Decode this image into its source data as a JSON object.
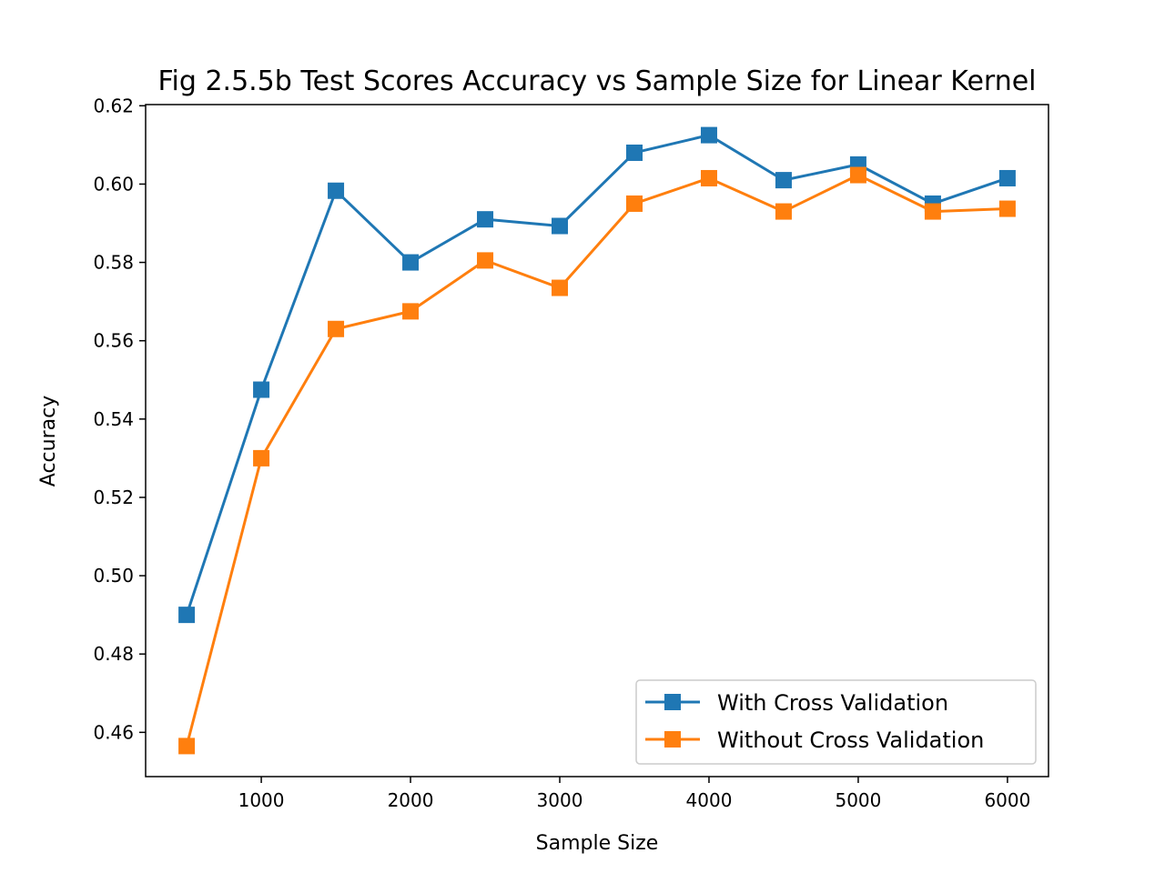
{
  "chart_data": {
    "type": "line",
    "title": "Fig 2.5.5b Test Scores Accuracy vs Sample Size for Linear Kernel",
    "xlabel": "Sample Size",
    "ylabel": "Accuracy",
    "x": [
      500,
      1000,
      1500,
      2000,
      2500,
      3000,
      3500,
      4000,
      4500,
      5000,
      5500,
      6000
    ],
    "xlim": [
      225,
      6275
    ],
    "ylim": [
      0.4487,
      0.6203
    ],
    "xticks": [
      1000,
      2000,
      3000,
      4000,
      5000,
      6000
    ],
    "xtick_labels": [
      "1000",
      "2000",
      "3000",
      "4000",
      "5000",
      "6000"
    ],
    "yticks": [
      0.46,
      0.48,
      0.5,
      0.52,
      0.54,
      0.56,
      0.58,
      0.6,
      0.62
    ],
    "ytick_labels": [
      "0.46",
      "0.48",
      "0.50",
      "0.52",
      "0.54",
      "0.56",
      "0.58",
      "0.60",
      "0.62"
    ],
    "grid": false,
    "legend_position": "bottom-right",
    "series": [
      {
        "name": "With Cross Validation",
        "color": "#1f77b4",
        "marker": "square",
        "values": [
          0.49,
          0.5475,
          0.5983,
          0.58,
          0.591,
          0.5893,
          0.608,
          0.6125,
          0.601,
          0.605,
          0.595,
          0.6015
        ]
      },
      {
        "name": "Without Cross Validation",
        "color": "#ff7f0e",
        "marker": "square",
        "values": [
          0.4565,
          0.53,
          0.563,
          0.5675,
          0.5805,
          0.5735,
          0.595,
          0.6015,
          0.593,
          0.6023,
          0.593,
          0.5937
        ]
      }
    ]
  }
}
